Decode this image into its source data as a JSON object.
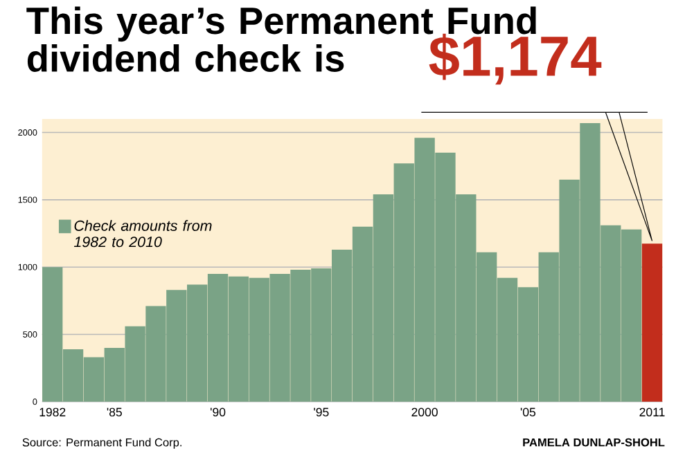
{
  "chart_data": {
    "type": "bar",
    "title": "This year’s Permanent Fund dividend check is",
    "categories": [
      "1982",
      null,
      null,
      "'85",
      null,
      null,
      null,
      null,
      "'90",
      null,
      null,
      null,
      null,
      "'95",
      null,
      null,
      null,
      null,
      "2000",
      null,
      null,
      null,
      null,
      "'05",
      null,
      null,
      null,
      null,
      null,
      "2011"
    ],
    "series": [
      {
        "name": "Check amounts from 1982 to 2010",
        "color": "#7aa386",
        "values": [
          1000,
          390,
          330,
          400,
          560,
          710,
          830,
          870,
          950,
          930,
          920,
          950,
          980,
          990,
          1130,
          1300,
          1540,
          1770,
          1960,
          1850,
          1540,
          1110,
          920,
          850,
          1110,
          1650,
          2070,
          1310,
          1280,
          null
        ]
      },
      {
        "color": "#c22d1c",
        "values": [
          null,
          null,
          null,
          null,
          null,
          null,
          null,
          null,
          null,
          null,
          null,
          null,
          null,
          null,
          null,
          null,
          null,
          null,
          null,
          null,
          null,
          null,
          null,
          null,
          null,
          null,
          null,
          null,
          null,
          1174
        ]
      }
    ],
    "ylim": [
      0,
      2100
    ],
    "yticks": [
      0,
      500,
      1000,
      1500,
      2000
    ],
    "grid": "y",
    "legend": "left",
    "annotations": [
      {
        "text": "$1,174",
        "x": "2011",
        "y": 1174
      },
      "Source: Permanent Fund Corp.",
      "PAMELA DUNLAP-SHOHL"
    ]
  }
}
